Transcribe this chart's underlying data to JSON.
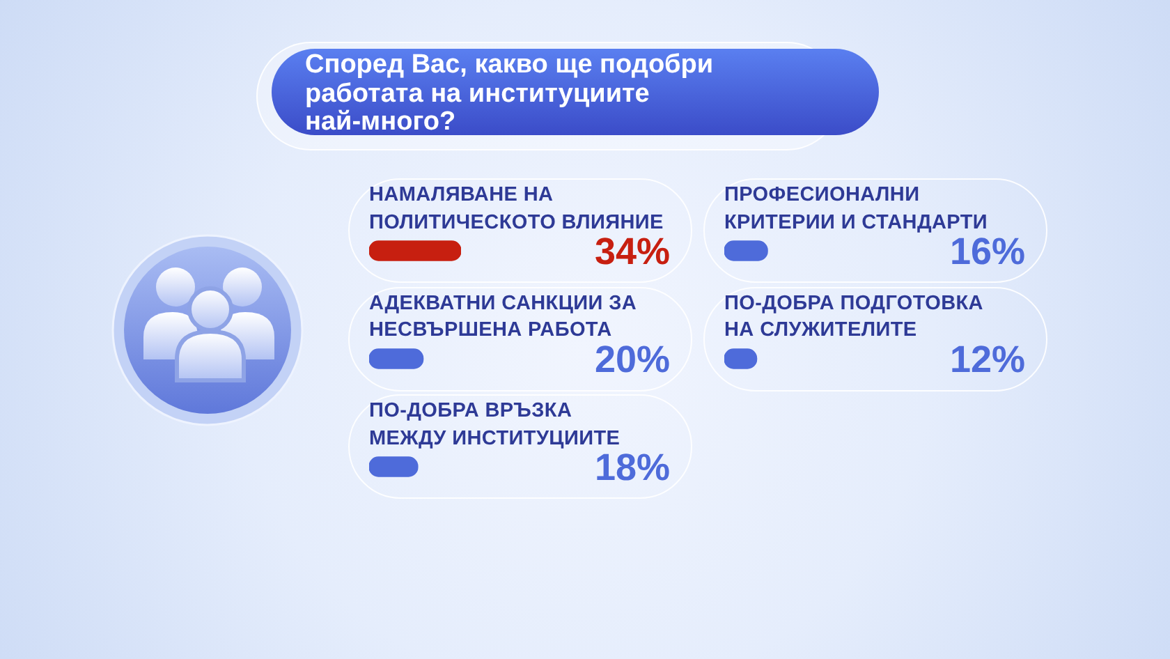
{
  "chart_data": [
    {
      "type": "bar",
      "orientation": "horizontal",
      "title": "Според Вас, какво ще подобри работата на институциите най-много?",
      "categories": [
        "НАМАЛЯВАНЕ НА ПОЛИТИЧЕСКОТО ВЛИЯНИЕ",
        "АДЕКВАТНИ САНКЦИИ ЗА НЕСВЪРШЕНА РАБОТА",
        "ПО-ДОБРА ВРЪЗКА МЕЖДУ ИНСТИТУЦИИТЕ"
      ],
      "values": [
        34,
        20,
        18
      ],
      "colors": [
        "#c71f10",
        "#4e6bda",
        "#4e6bda"
      ],
      "value_labels": [
        "34%",
        "20%",
        "18%"
      ]
    },
    {
      "type": "bar",
      "orientation": "horizontal",
      "categories": [
        "ПРОФЕСИОНАЛНИ КРИТЕРИИ И СТАНДАРТИ",
        "ПО-ДОБРА ПОДГОТОВКА НА СЛУЖИТЕЛИТЕ"
      ],
      "values": [
        16,
        12
      ],
      "colors": [
        "#4e6bda",
        "#4e6bda"
      ],
      "value_labels": [
        "16%",
        "12%"
      ]
    }
  ]
}
